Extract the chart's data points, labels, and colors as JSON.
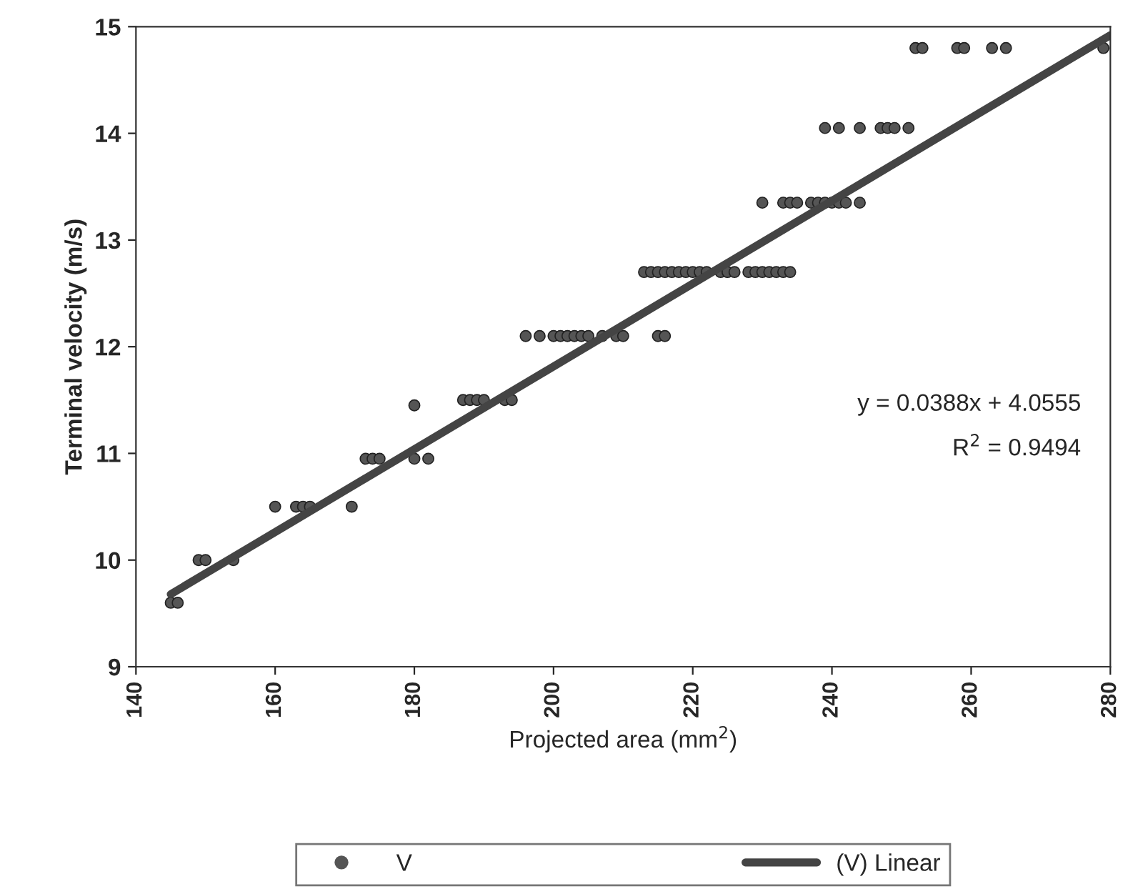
{
  "chart_data": {
    "type": "scatter",
    "xlabel": "Projected area (mm$^{2}$)",
    "ylabel": "Terminal velocity (m/s)",
    "xlim": [
      140,
      280
    ],
    "xticks": [
      140,
      160,
      180,
      200,
      220,
      240,
      260,
      280
    ],
    "ylim": [
      9,
      15
    ],
    "yticks": [
      9,
      10,
      11,
      12,
      13,
      14,
      15
    ],
    "grid": false,
    "legend": "bottom",
    "marker": "circle",
    "annotations": [
      "y = 0.0388x + 4.0555",
      "R$^{2}$ = 0.9494"
    ],
    "series": [
      {
        "name": "V",
        "color": "#555555",
        "x": [
          145,
          146,
          149,
          150,
          154,
          160,
          163,
          164,
          165,
          171,
          173,
          174,
          175,
          180,
          182,
          180,
          187,
          188,
          189,
          190,
          193,
          194,
          196,
          198,
          200,
          201,
          202,
          203,
          204,
          205,
          207,
          209,
          210,
          215,
          216,
          213,
          214,
          215,
          216,
          217,
          218,
          219,
          220,
          221,
          222,
          224,
          225,
          226,
          228,
          229,
          230,
          231,
          232,
          233,
          234,
          230,
          233,
          234,
          235,
          237,
          238,
          239,
          240,
          241,
          242,
          244,
          239,
          241,
          244,
          247,
          248,
          249,
          251,
          252,
          253,
          258,
          259,
          263,
          265,
          279
        ],
        "values": [
          9.6,
          9.6,
          10.0,
          10.0,
          10.0,
          10.5,
          10.5,
          10.5,
          10.5,
          10.5,
          10.95,
          10.95,
          10.95,
          10.95,
          10.95,
          11.45,
          11.5,
          11.5,
          11.5,
          11.5,
          11.5,
          11.5,
          12.1,
          12.1,
          12.1,
          12.1,
          12.1,
          12.1,
          12.1,
          12.1,
          12.1,
          12.1,
          12.1,
          12.1,
          12.1,
          12.7,
          12.7,
          12.7,
          12.7,
          12.7,
          12.7,
          12.7,
          12.7,
          12.7,
          12.7,
          12.7,
          12.7,
          12.7,
          12.7,
          12.7,
          12.7,
          12.7,
          12.7,
          12.7,
          12.7,
          13.35,
          13.35,
          13.35,
          13.35,
          13.35,
          13.35,
          13.35,
          13.35,
          13.35,
          13.35,
          13.35,
          14.05,
          14.05,
          14.05,
          14.05,
          14.05,
          14.05,
          14.05,
          14.8,
          14.8,
          14.8,
          14.8,
          14.8,
          14.8,
          14.8
        ]
      },
      {
        "name": "(V) Linear",
        "type": "line",
        "color": "#444444",
        "line_style": "solid",
        "marker": "none",
        "x": [
          145,
          280
        ],
        "values": [
          9.68,
          14.92
        ]
      }
    ]
  }
}
